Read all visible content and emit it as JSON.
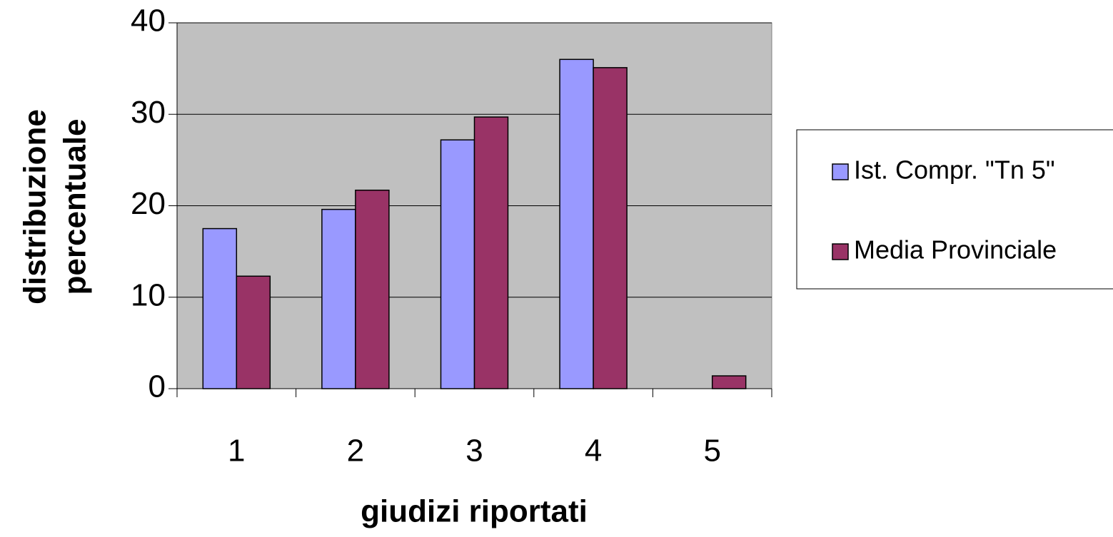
{
  "chart_data": {
    "type": "bar",
    "x_label": "giudizi riportati",
    "y_label": [
      "distribuzione",
      "percentuale"
    ],
    "categories": [
      "1",
      "2",
      "3",
      "4",
      "5"
    ],
    "series": [
      {
        "name": "Ist. Compr. \"Tn 5\"",
        "color": "#9999ff",
        "values": [
          17.5,
          19.6,
          27.2,
          36.0,
          0
        ]
      },
      {
        "name": "Media Provinciale",
        "color": "#993366",
        "values": [
          12.3,
          21.7,
          29.7,
          35.1,
          1.4
        ]
      }
    ],
    "ylim": [
      0,
      40
    ],
    "yticks": [
      0,
      10,
      20,
      30,
      40
    ],
    "grid": true,
    "legend": "right"
  }
}
